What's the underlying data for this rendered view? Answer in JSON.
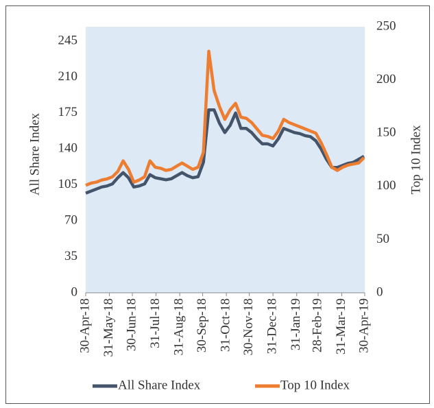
{
  "chart_data": {
    "type": "line",
    "y_label": "All Share Index",
    "y2_label": "Top 10 Index",
    "x": [
      "30-Apr-18",
      "7-May-18",
      "14-May-18",
      "21-May-18",
      "28-May-18",
      "4-Jun-18",
      "11-Jun-18",
      "18-Jun-18",
      "25-Jun-18",
      "2-Jul-18",
      "9-Jul-18",
      "16-Jul-18",
      "23-Jul-18",
      "30-Jul-18",
      "6-Aug-18",
      "13-Aug-18",
      "20-Aug-18",
      "27-Aug-18",
      "3-Sep-18",
      "10-Sep-18",
      "17-Sep-18",
      "24-Sep-18",
      "1-Oct-18",
      "8-Oct-18",
      "15-Oct-18",
      "22-Oct-18",
      "29-Oct-18",
      "5-Nov-18",
      "12-Nov-18",
      "19-Nov-18",
      "26-Nov-18",
      "3-Dec-18",
      "10-Dec-18",
      "17-Dec-18",
      "24-Dec-18",
      "31-Dec-18",
      "7-Jan-19",
      "14-Jan-19",
      "21-Jan-19",
      "28-Jan-19",
      "4-Feb-19",
      "11-Feb-19",
      "18-Feb-19",
      "25-Feb-19",
      "4-Mar-19",
      "11-Mar-19",
      "18-Mar-19",
      "25-Mar-19",
      "1-Apr-19",
      "8-Apr-19",
      "15-Apr-19",
      "22-Apr-19",
      "29-Apr-19"
    ],
    "series": [
      {
        "name": "All Share Index",
        "color": "#44546a",
        "axis": "y",
        "values": [
          97,
          99,
          101,
          103,
          104,
          106,
          112,
          117,
          112,
          103,
          104,
          106,
          115,
          112,
          111,
          110,
          111,
          114,
          117,
          114,
          112,
          113,
          127,
          178,
          178,
          165,
          156,
          163,
          175,
          160,
          160,
          156,
          150,
          145,
          145,
          143,
          150,
          160,
          158,
          156,
          155,
          153,
          152,
          148,
          140,
          130,
          122,
          122,
          124,
          126,
          127,
          130,
          133
        ]
      },
      {
        "name": "Top 10 Index",
        "color": "#ed7d31",
        "axis": "y2",
        "values": [
          101,
          103,
          104,
          106,
          107,
          109,
          114,
          124,
          116,
          104,
          106,
          109,
          124,
          118,
          117,
          115,
          116,
          119,
          122,
          119,
          116,
          118,
          132,
          227,
          190,
          175,
          163,
          172,
          178,
          165,
          164,
          160,
          154,
          148,
          147,
          145,
          152,
          163,
          160,
          158,
          156,
          154,
          152,
          150,
          141,
          130,
          118,
          115,
          118,
          120,
          121,
          122,
          127
        ]
      }
    ],
    "xlim": [
      "30-Apr-18",
      "30-Apr-19"
    ],
    "xticks": [
      "30-Apr-18",
      "31-May-18",
      "30-Jun-18",
      "31-Jul-18",
      "31-Aug-18",
      "30-Sep-18",
      "31-Oct-18",
      "30-Nov-18",
      "31-Dec-18",
      "31-Jan-19",
      "28-Feb-19",
      "31-Mar-19",
      "30-Apr-19"
    ],
    "ylim": [
      0,
      259
    ],
    "yticks": [
      0,
      35,
      70,
      105,
      140,
      175,
      210,
      245
    ],
    "y2lim": [
      0,
      250
    ],
    "y2ticks": [
      0,
      50,
      100,
      150,
      200,
      250
    ],
    "legend": "bottom"
  }
}
